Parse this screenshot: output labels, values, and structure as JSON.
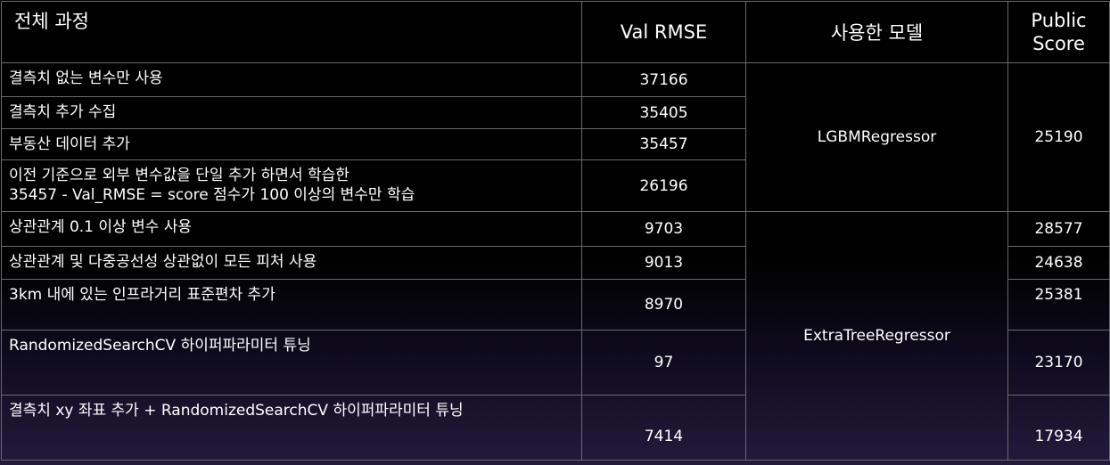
{
  "headers": {
    "process": "전체 과정",
    "val_rmse": "Val RMSE",
    "model": "사용한 모델",
    "public_score_line1": "Public",
    "public_score_line2": "Score"
  },
  "rows": [
    {
      "process": "결측치 없는 변수만 사용",
      "val_rmse": "37166"
    },
    {
      "process": "결측치 추가 수집",
      "val_rmse": "35405"
    },
    {
      "process": "부동산 데이터 추가",
      "val_rmse": "35457"
    },
    {
      "process_line1": "이전 기준으로 외부 변수값을 단일 추가 하면서 학습한",
      "process_line2": "35457 - Val_RMSE = score 점수가 100 이상의 변수만 학습",
      "val_rmse": "26196"
    },
    {
      "process": "상관관계 0.1 이상 변수 사용",
      "val_rmse": "9703",
      "public_score": "28577"
    },
    {
      "process": "상관관계 및 다중공선성 상관없이 모든 피처 사용",
      "val_rmse": "9013",
      "public_score": "24638"
    },
    {
      "process": "3km 내에 있는 인프라거리 표준편차 추가",
      "val_rmse": "8970",
      "public_score": "25381"
    },
    {
      "process": "RandomizedSearchCV 하이퍼파라미터 튜닝",
      "val_rmse": "97",
      "public_score": "23170"
    },
    {
      "process": "결측치 xy 좌표 추가 + RandomizedSearchCV 하이퍼파라미터 튜닝",
      "val_rmse": "7414",
      "public_score": "17934"
    }
  ],
  "models": {
    "group1": "LGBMRegressor",
    "group2": "ExtraTreeRegressor"
  },
  "group_scores": {
    "group1": "25190"
  }
}
